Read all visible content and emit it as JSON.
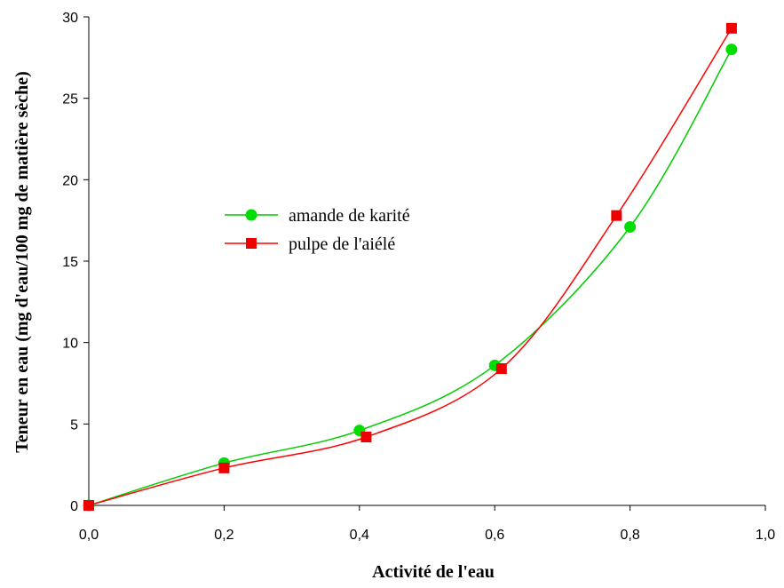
{
  "chart_data": {
    "type": "line",
    "xlabel": "Activité de l'eau",
    "ylabel": "Teneur en eau (mg d'eau/100 mg de matière sèche)",
    "xlim": [
      0,
      1.0
    ],
    "ylim": [
      0,
      30
    ],
    "xticks": [
      0,
      0.2,
      0.4,
      0.6,
      0.8,
      1.0
    ],
    "xtick_labels": [
      "0,0",
      "0,2",
      "0,4",
      "0,6",
      "0,8",
      "1,0"
    ],
    "yticks": [
      0,
      5,
      10,
      15,
      20,
      25,
      30
    ],
    "ytick_labels": [
      "0",
      "5",
      "10",
      "15",
      "20",
      "25",
      "30"
    ],
    "grid": false,
    "legend_position": "center-left",
    "series": [
      {
        "name": "amande de karité",
        "color": "#00cc00",
        "marker": "circle",
        "x": [
          0.0,
          0.2,
          0.4,
          0.6,
          0.8,
          0.95
        ],
        "y": [
          0.0,
          2.6,
          4.6,
          8.6,
          17.1,
          28.0
        ]
      },
      {
        "name": "pulpe de l'aiélé",
        "color": "#ff0000",
        "marker": "square",
        "x": [
          0.0,
          0.2,
          0.41,
          0.61,
          0.78,
          0.95
        ],
        "y": [
          0.0,
          2.3,
          4.2,
          8.4,
          17.8,
          29.3
        ]
      }
    ]
  }
}
